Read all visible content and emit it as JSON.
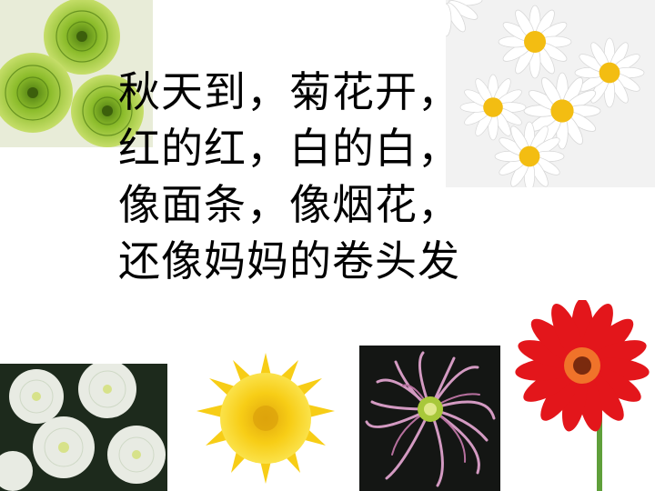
{
  "slide": {
    "background": "#ffffff",
    "text_color": "#000000"
  },
  "poem": {
    "lines": [
      "秋天到，菊花开，",
      "红的红，白的白，",
      "像面条，像烟花，",
      "还像妈妈的卷头发"
    ]
  },
  "photos": [
    {
      "name": "green-chrysanthemums-photo",
      "color": "#8fbf2a"
    },
    {
      "name": "white-daisies-photo",
      "color": "#f5c21b"
    },
    {
      "name": "white-chrysanthemums-photo",
      "color": "#f4f6f0"
    },
    {
      "name": "yellow-chrysanthemum-photo",
      "color": "#f7cd16"
    },
    {
      "name": "pink-spider-chrysanthemum-photo",
      "color": "#c98ab6"
    },
    {
      "name": "red-gerbera-photo",
      "color": "#e3161b"
    }
  ]
}
